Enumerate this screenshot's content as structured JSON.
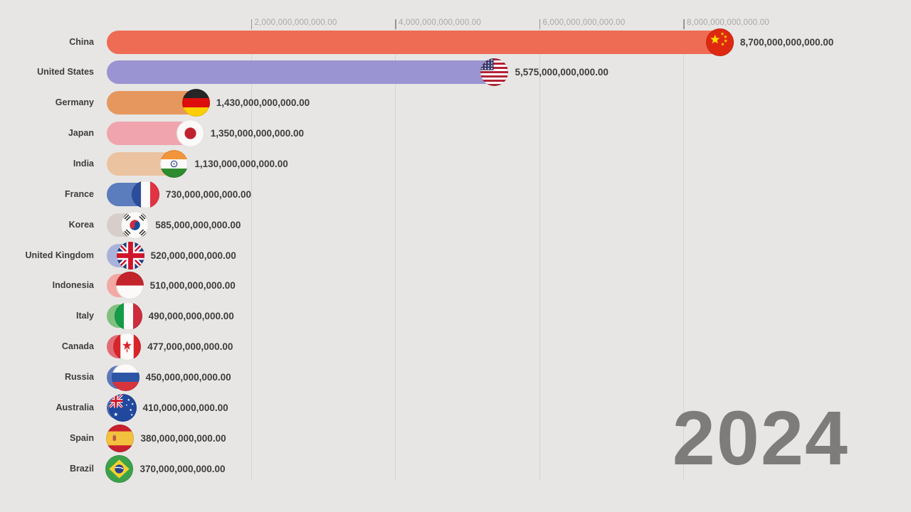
{
  "year_label": "2024",
  "colors": {
    "background": "#e7e6e4",
    "gridline": "#d4d3d1",
    "tick_text": "#a9a7a4",
    "label_text": "#3d3d3d",
    "value_text": "#3d3d3d",
    "year_text": "#7d7c7a"
  },
  "axis": {
    "ticks": [
      {
        "label": "2,000,000,000,000.00",
        "value": 2000000000000
      },
      {
        "label": "4,000,000,000,000.00",
        "value": 4000000000000
      },
      {
        "label": "6,000,000,000,000.00",
        "value": 6000000000000
      },
      {
        "label": "8,000,000,000,000.00",
        "value": 8000000000000
      }
    ]
  },
  "chart_data": {
    "type": "bar",
    "orientation": "horizontal",
    "title": "",
    "year": "2024",
    "xlim": [
      0,
      9000000000000
    ],
    "grid": true,
    "legend": "none",
    "rows": [
      {
        "country": "China",
        "value": 8700000000000,
        "value_label": "8,700,000,000,000.00",
        "bar_color": "#ee6b54",
        "flag": "flag-china"
      },
      {
        "country": "United States",
        "value": 5575000000000,
        "value_label": "5,575,000,000,000.00",
        "bar_color": "#9a94d2",
        "flag": "flag-united-states"
      },
      {
        "country": "Germany",
        "value": 1430000000000,
        "value_label": "1,430,000,000,000.00",
        "bar_color": "#e6975e",
        "flag": "flag-germany"
      },
      {
        "country": "Japan",
        "value": 1350000000000,
        "value_label": "1,350,000,000,000.00",
        "bar_color": "#f0a4ae",
        "flag": "flag-japan"
      },
      {
        "country": "India",
        "value": 1130000000000,
        "value_label": "1,130,000,000,000.00",
        "bar_color": "#ecc3a0",
        "flag": "flag-india"
      },
      {
        "country": "France",
        "value": 730000000000,
        "value_label": "730,000,000,000.00",
        "bar_color": "#5b7cbd",
        "flag": "flag-france"
      },
      {
        "country": "Korea",
        "value": 585000000000,
        "value_label": "585,000,000,000.00",
        "bar_color": "#d7cec9",
        "flag": "flag-korea"
      },
      {
        "country": "United Kingdom",
        "value": 520000000000,
        "value_label": "520,000,000,000.00",
        "bar_color": "#a9b2db",
        "flag": "flag-united-kingdom"
      },
      {
        "country": "Indonesia",
        "value": 510000000000,
        "value_label": "510,000,000,000.00",
        "bar_color": "#f3a8a3",
        "flag": "flag-indonesia"
      },
      {
        "country": "Italy",
        "value": 490000000000,
        "value_label": "490,000,000,000.00",
        "bar_color": "#7fc07f",
        "flag": "flag-italy"
      },
      {
        "country": "Canada",
        "value": 477000000000,
        "value_label": "477,000,000,000.00",
        "bar_color": "#e06b76",
        "flag": "flag-canada"
      },
      {
        "country": "Russia",
        "value": 450000000000,
        "value_label": "450,000,000,000.00",
        "bar_color": "#5c77bb",
        "flag": "flag-russia"
      },
      {
        "country": "Australia",
        "value": 410000000000,
        "value_label": "410,000,000,000.00",
        "bar_color": "#4a69ad",
        "flag": "flag-australia"
      },
      {
        "country": "Spain",
        "value": 380000000000,
        "value_label": "380,000,000,000.00",
        "bar_color": "#e9b94d",
        "flag": "flag-spain"
      },
      {
        "country": "Brazil",
        "value": 370000000000,
        "value_label": "370,000,000,000.00",
        "bar_color": "#68b34d",
        "flag": "flag-brazil"
      }
    ]
  }
}
